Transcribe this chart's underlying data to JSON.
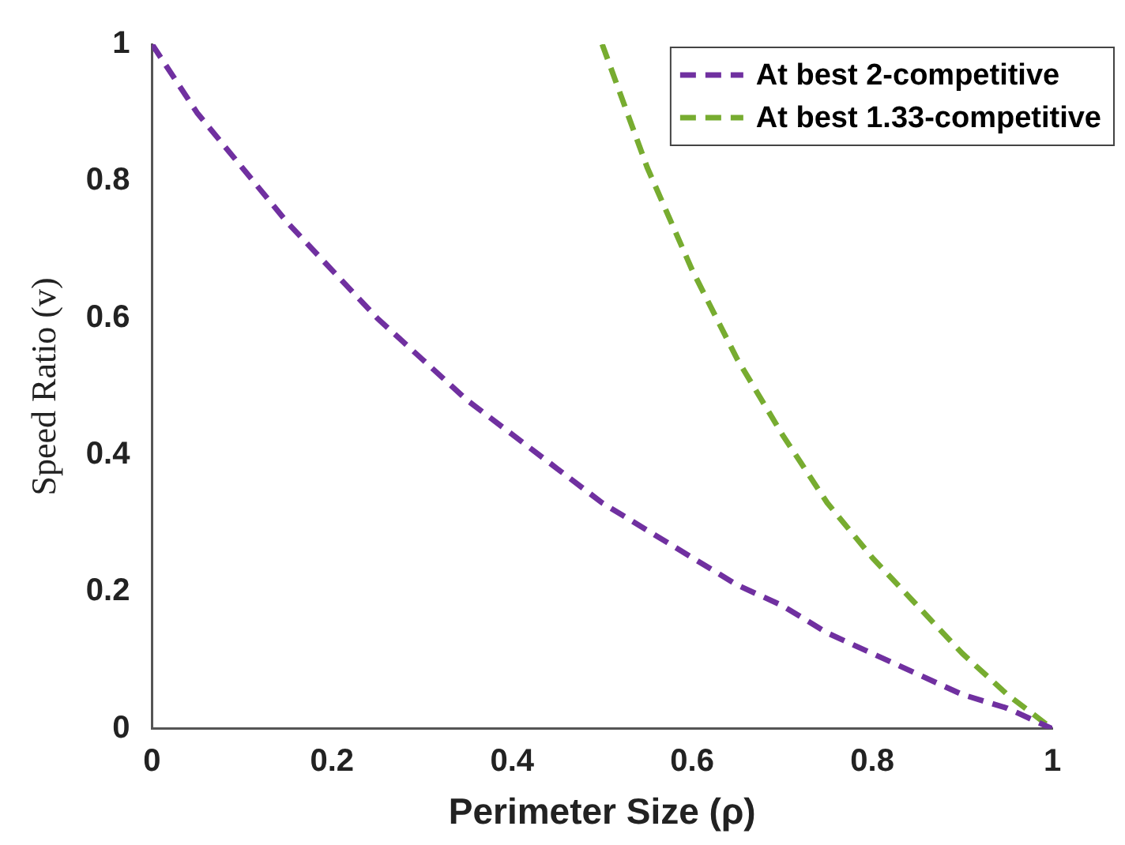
{
  "chart_data": {
    "type": "line",
    "xlabel": "Perimeter Size (ρ)",
    "ylabel": "Speed Ratio (v)",
    "xlim": [
      0,
      1
    ],
    "ylim": [
      0,
      1
    ],
    "xticks": [
      0,
      0.2,
      0.4,
      0.6,
      0.8,
      1
    ],
    "yticks": [
      0,
      0.2,
      0.4,
      0.6,
      0.8,
      1
    ],
    "grid": false,
    "legend": "top right",
    "marker": "none",
    "series": [
      {
        "name": "At best 2-competitive",
        "color": "#7030a0",
        "line_style": "dashed",
        "x": [
          0,
          0.05,
          0.1,
          0.15,
          0.2,
          0.25,
          0.3,
          0.35,
          0.4,
          0.45,
          0.5,
          0.55,
          0.6,
          0.65,
          0.7,
          0.75,
          0.8,
          0.85,
          0.9,
          0.95,
          1
        ],
        "values": [
          1,
          0.9,
          0.82,
          0.74,
          0.67,
          0.6,
          0.54,
          0.48,
          0.43,
          0.38,
          0.33,
          0.29,
          0.25,
          0.21,
          0.18,
          0.14,
          0.11,
          0.08,
          0.05,
          0.03,
          0
        ]
      },
      {
        "name": "At best 1.33-competitive",
        "color": "#77ac30",
        "line_style": "dashed",
        "x": [
          0.5,
          0.55,
          0.6,
          0.65,
          0.7,
          0.75,
          0.8,
          0.85,
          0.9,
          0.95,
          1
        ],
        "values": [
          1,
          0.82,
          0.67,
          0.54,
          0.43,
          0.33,
          0.25,
          0.18,
          0.11,
          0.05,
          0
        ]
      }
    ]
  }
}
